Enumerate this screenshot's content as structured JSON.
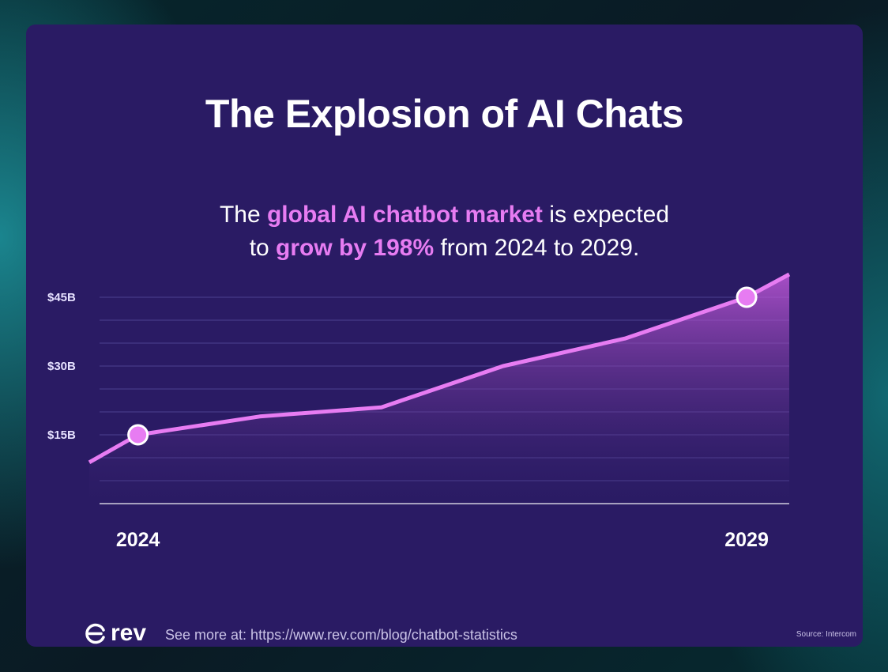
{
  "title": "The Explosion of AI Chats",
  "subtitle": {
    "part1": "The ",
    "highlight1": "global AI chatbot market",
    "part2": " is expected",
    "part3": "to ",
    "highlight2": "grow by 198%",
    "part4": " from 2024 to 2029."
  },
  "chart_data": {
    "type": "area",
    "title": "The Explosion of AI Chats",
    "xlabel": "",
    "ylabel": "",
    "y_ticks": [
      {
        "value": 15,
        "label": "$15B"
      },
      {
        "value": 30,
        "label": "$30B"
      },
      {
        "value": 45,
        "label": "$45B"
      }
    ],
    "x_labels": [
      {
        "x": 0,
        "label": "2024"
      },
      {
        "x": 5,
        "label": "2029"
      }
    ],
    "ylim": [
      0,
      50
    ],
    "xlim": [
      -0.4,
      5.35
    ],
    "gridlines": [
      5,
      10,
      15,
      20,
      25,
      30,
      35,
      40,
      45
    ],
    "series": [
      {
        "points": [
          {
            "x": -0.4,
            "y": 9
          },
          {
            "x": 0,
            "y": 15
          },
          {
            "x": 1,
            "y": 19
          },
          {
            "x": 2,
            "y": 21
          },
          {
            "x": 3,
            "y": 30
          },
          {
            "x": 4,
            "y": 36
          },
          {
            "x": 5,
            "y": 45
          },
          {
            "x": 5.35,
            "y": 50
          }
        ],
        "highlighted": [
          {
            "x": 0,
            "y": 15
          },
          {
            "x": 5,
            "y": 45
          }
        ]
      }
    ],
    "colors": {
      "line": "#e77cf2",
      "marker": "#e77cf2",
      "grid": "#4c4190",
      "axis": "#ffffff",
      "tick_text": "#e6e1ff"
    }
  },
  "footer": {
    "brand": "rev",
    "link": "See more at: https://www.rev.com/blog/chatbot-statistics",
    "source": "Source: Intercom"
  }
}
